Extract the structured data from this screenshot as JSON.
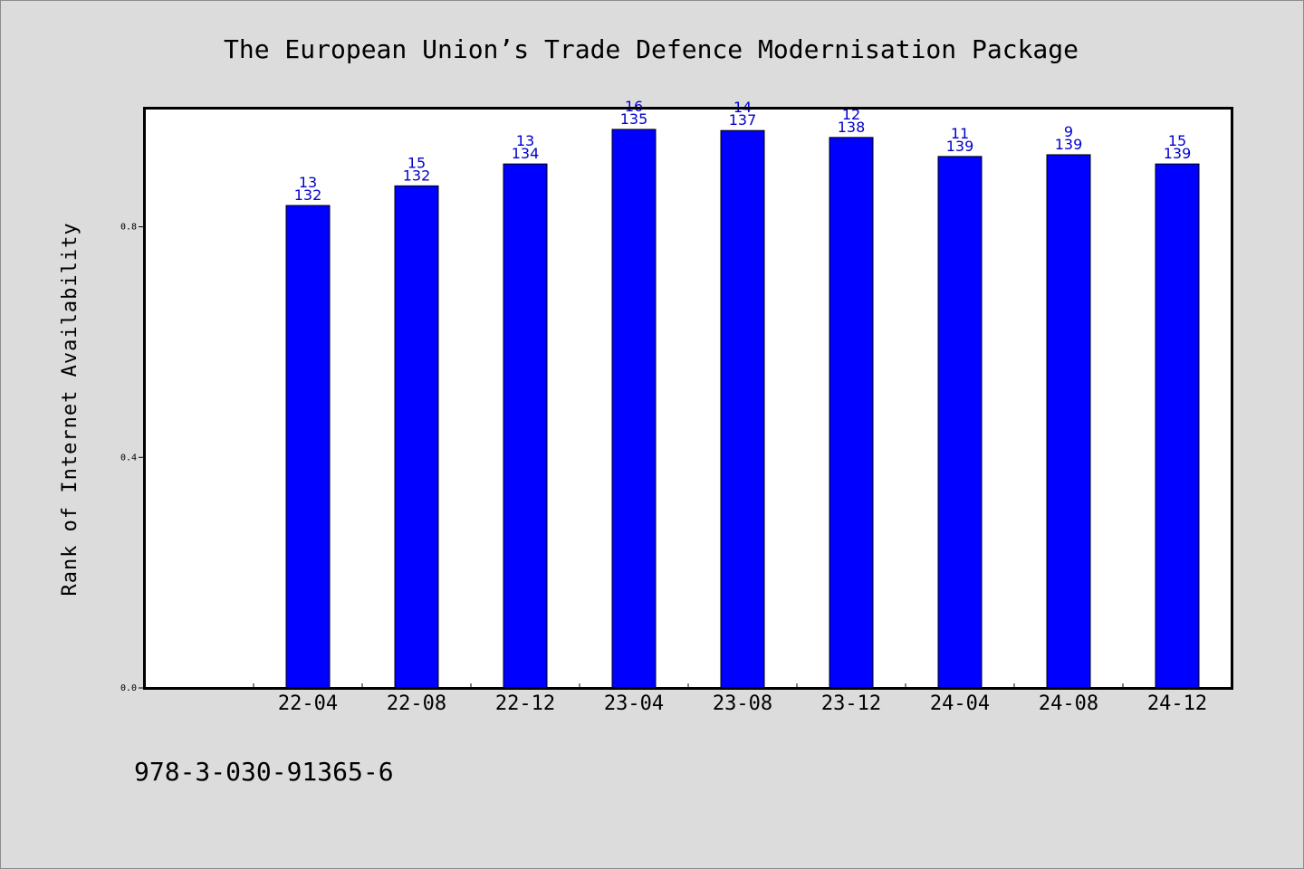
{
  "chart_data": {
    "type": "bar",
    "title": "The European Union’s Trade Defence Modernisation Package",
    "xlabel": "",
    "ylabel": "Rank of Internet Availability",
    "categories": [
      "22-04",
      "22-08",
      "22-12",
      "23-04",
      "23-08",
      "23-12",
      "24-04",
      "24-08",
      "24-12"
    ],
    "series": [
      {
        "values": [
          0.837,
          0.871,
          0.909,
          0.969,
          0.967,
          0.955,
          0.922,
          0.925,
          0.909
        ],
        "labels_top": [
          "13",
          "15",
          "13",
          "16",
          "14",
          "12",
          "11",
          "9",
          "15"
        ],
        "labels_bottom": [
          "132",
          "132",
          "134",
          "135",
          "137",
          "138",
          "139",
          "139",
          "139"
        ]
      }
    ],
    "yticks": [
      "0.0",
      "0.4",
      "0.8"
    ],
    "ytick_values": [
      0.0,
      0.4,
      0.8
    ],
    "ylim": [
      0,
      1.005
    ],
    "grid": false,
    "legend": "none",
    "bar_color": "#0000ff",
    "label_color": "#0000cc"
  },
  "footer": {
    "isbn": "978-3-030-91365-6"
  }
}
